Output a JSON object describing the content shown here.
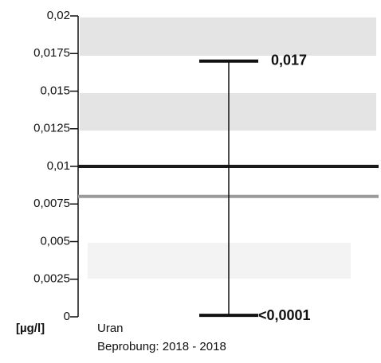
{
  "chart_data": {
    "type": "range",
    "y_unit": "[µg/l]",
    "x_label": "Uran",
    "subtitle": "Beprobung: 2018 - 2018",
    "values": [
      0.0001,
      0.017
    ],
    "value_labels": [
      "<0,0001",
      "0,017"
    ],
    "color": "#111",
    "reference_lines": [
      {
        "value": 0.01,
        "color": "#1a1a1a"
      },
      {
        "value": 0.008,
        "color": "#9a9a9a"
      }
    ],
    "ylim": [
      0,
      0.02
    ],
    "yticks": [
      0,
      {
        "value": 0.0025,
        "label": "0,0025"
      },
      {
        "value": 0.005,
        "label": "0,005"
      },
      {
        "value": 0.0075,
        "label": "0,0075"
      },
      {
        "value": 0.01,
        "label": "0,01"
      },
      {
        "value": 0.0125,
        "label": "0,0125"
      },
      {
        "value": 0.015,
        "label": "0,015"
      },
      {
        "value": 0.0175,
        "label": "0,0175"
      },
      {
        "value": 0.02,
        "label": "0,02"
      }
    ]
  }
}
